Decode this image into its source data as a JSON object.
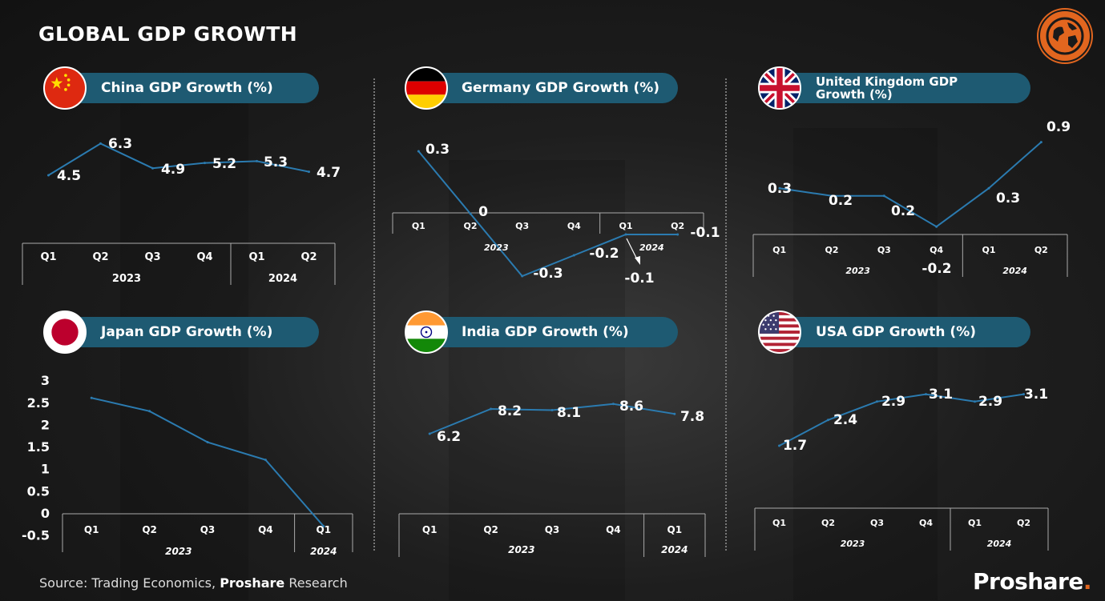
{
  "title": "GLOBAL GDP GROWTH",
  "globe_icon": "globe-icon",
  "source": {
    "prefix": "Source: Trading Economics, ",
    "bold": "Proshare",
    "suffix": " Research"
  },
  "brand": {
    "name": "Proshare",
    "dot": ".",
    "accent": "#e2661f"
  },
  "colors": {
    "pill": "#1e5a72",
    "line": "#2b7bb0"
  },
  "chart_data": [
    {
      "type": "line",
      "title": "China GDP Growth (%)",
      "flag": "china-flag",
      "categories": [
        "Q1",
        "Q2",
        "Q3",
        "Q4",
        "Q1",
        "Q2"
      ],
      "groups": [
        "2023",
        "2024"
      ],
      "values": [
        4.5,
        6.3,
        4.9,
        5.2,
        5.3,
        4.7
      ],
      "labels": [
        "4.5",
        "6.3",
        "4.9",
        "5.2",
        "5.3",
        "4.7"
      ]
    },
    {
      "type": "line",
      "title": "Germany GDP Growth (%)",
      "flag": "germany-flag",
      "categories": [
        "Q1",
        "Q2",
        "Q3",
        "Q4",
        "Q1",
        "Q2"
      ],
      "groups": [
        "2023",
        "2024"
      ],
      "values": [
        0.3,
        0,
        -0.3,
        -0.2,
        -0.1,
        -0.1
      ],
      "labels": [
        "0.3",
        "0",
        "-0.3",
        "-0.2",
        "-0.1",
        "-0.1"
      ]
    },
    {
      "type": "line",
      "title": "United Kingdom GDP Growth (%)",
      "flag": "uk-flag",
      "categories": [
        "Q1",
        "Q2",
        "Q3",
        "Q4",
        "Q1",
        "Q2"
      ],
      "groups": [
        "2023",
        "2024"
      ],
      "values": [
        0.3,
        0.2,
        0.2,
        -0.2,
        0.3,
        0.9
      ],
      "labels": [
        "0.3",
        "0.2",
        "0.2",
        "-0.2",
        "0.3",
        "0.9"
      ]
    },
    {
      "type": "line",
      "title": "Japan GDP Growth (%)",
      "flag": "japan-flag",
      "categories": [
        "Q1",
        "Q2",
        "Q3",
        "Q4",
        "Q1"
      ],
      "groups": [
        "2023",
        "2024"
      ],
      "values": [
        2.6,
        2.3,
        1.6,
        1.2,
        -0.3
      ],
      "yticks": [
        "3",
        "2.5",
        "2",
        "1.5",
        "1",
        "0.5",
        "0",
        "-0.5"
      ],
      "ylim": [
        -0.5,
        3
      ]
    },
    {
      "type": "line",
      "title": "India GDP Growth (%)",
      "flag": "india-flag",
      "categories": [
        "Q1",
        "Q2",
        "Q3",
        "Q4",
        "Q1"
      ],
      "groups": [
        "2023",
        "2024"
      ],
      "values": [
        6.2,
        8.2,
        8.1,
        8.6,
        7.8
      ],
      "labels": [
        "6.2",
        "8.2",
        "8.1",
        "8.6",
        "7.8"
      ]
    },
    {
      "type": "line",
      "title": "USA GDP Growth (%)",
      "flag": "usa-flag",
      "categories": [
        "Q1",
        "Q2",
        "Q3",
        "Q4",
        "Q1",
        "Q2"
      ],
      "groups": [
        "2023",
        "2024"
      ],
      "values": [
        1.7,
        2.4,
        2.9,
        3.1,
        2.9,
        3.1
      ],
      "labels": [
        "1.7",
        "2.4",
        "2.9",
        "3.1",
        "2.9",
        "3.1"
      ]
    }
  ]
}
